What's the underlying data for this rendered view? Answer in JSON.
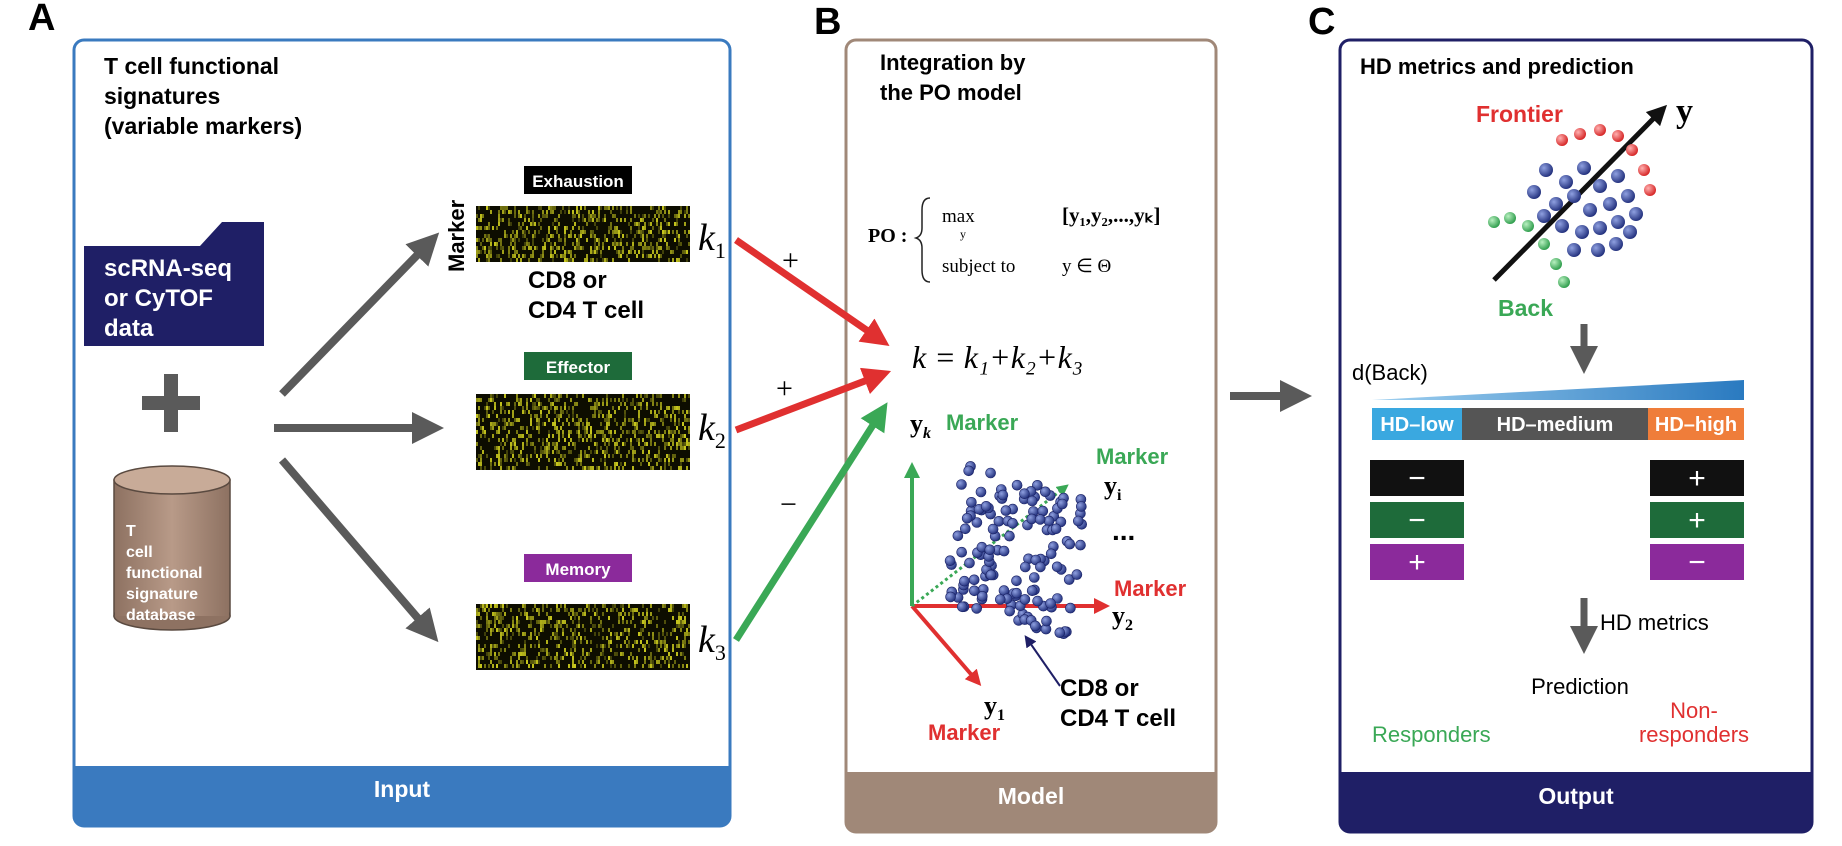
{
  "panel_a": {
    "letter": "A",
    "title_lines": [
      "T cell functional",
      "signatures",
      "(variable markers)"
    ],
    "input_box_lines": [
      "scRNA-seq",
      "or CyTOF",
      "data"
    ],
    "plus": "+",
    "database_lines": [
      "T",
      "cell",
      "functional",
      "signature",
      "database"
    ],
    "marker_axis": "Marker",
    "signatures": [
      {
        "label": "Exhaustion",
        "k": "k",
        "sub": "1",
        "color": "#000000"
      },
      {
        "label": "Effector",
        "k": "k",
        "sub": "2",
        "color": "#1e6b3a"
      },
      {
        "label": "Memory",
        "k": "k",
        "sub": "3",
        "color": "#8b2a9b"
      }
    ],
    "cell_lines": [
      "CD8 or",
      "CD4 T cell"
    ],
    "footer": "Input",
    "color": "#3a7abf"
  },
  "panel_b": {
    "letter": "B",
    "title_lines": [
      "Integration by",
      "the PO model"
    ],
    "arrow_signs": [
      "+",
      "+",
      "−"
    ],
    "po_label": "PO :",
    "max_text": "max",
    "max_sub": "y",
    "vector": "[y₁,y₂,...,yₖ]",
    "subject_to": "subject to",
    "constraint": "y ∈ Θ",
    "k_equation": "k = k₁+k₂+k₃",
    "axis_k_label": "y",
    "axis_k_sub": "k",
    "axis_i_label": "y",
    "axis_i_sub": "i",
    "axis_2_label": "y",
    "axis_2_sub": "2",
    "axis_1_label": "y",
    "axis_1_sub": "1",
    "marker_word": "Marker",
    "ellipsis": "...",
    "cell_lines": [
      "CD8 or",
      "CD4 T cell"
    ],
    "footer": "Model",
    "color": "#a08878"
  },
  "panel_c": {
    "letter": "C",
    "title": "HD metrics and prediction",
    "frontier": "Frontier",
    "back": "Back",
    "y_axis": "y",
    "d_back": "d(Back)",
    "hd_levels": [
      {
        "label": "HD–low",
        "color": "#3aa8e0"
      },
      {
        "label": "HD–medium",
        "color": "#555555"
      },
      {
        "label": "HD–high",
        "color": "#ef7d3a"
      }
    ],
    "left_signs": [
      "−",
      "−",
      "+"
    ],
    "right_signs": [
      "+",
      "+",
      "−"
    ],
    "hd_metrics": "HD metrics",
    "prediction": "Prediction",
    "responders": "Responders",
    "non_responders_lines": [
      "Non-",
      "responders"
    ],
    "footer": "Output",
    "color": "#1f1f66"
  },
  "colors": {
    "red": "#e03030",
    "green": "#3aa856",
    "gray_arrow": "#5a5a5a",
    "dot_blue": "#2a3a8a"
  }
}
